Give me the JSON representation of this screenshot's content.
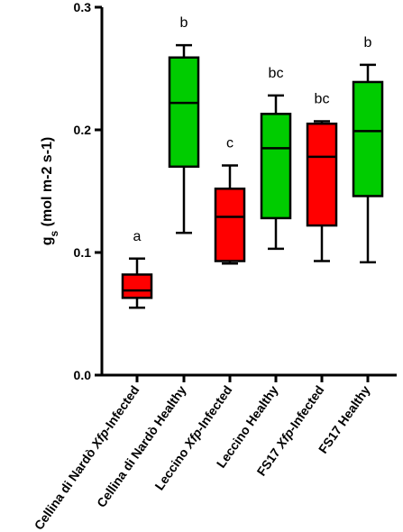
{
  "chart_data": {
    "type": "box",
    "title": "",
    "ylabel": {
      "main": "g",
      "sub": "s",
      "rest": " (mol m-2 s-1)"
    },
    "ylim": [
      0,
      0.3
    ],
    "yticks": [
      "0.0",
      "0.1",
      "0.2",
      "0.3"
    ],
    "ytick_values": [
      0,
      0.1,
      0.2,
      0.3
    ],
    "colors": {
      "infected": "#ff0000",
      "healthy": "#00cc00"
    },
    "boxes": [
      {
        "label_pre": "Cellina di Nardò ",
        "label_italic": "Xfp",
        "label_post": "-Infected",
        "group": "infected",
        "min": 0.055,
        "q1": 0.063,
        "median": 0.069,
        "q3": 0.082,
        "max": 0.095,
        "sig": "a"
      },
      {
        "label_pre": "Cellina di Nardò Healthy",
        "label_italic": "",
        "label_post": "",
        "group": "healthy",
        "min": 0.116,
        "q1": 0.17,
        "median": 0.222,
        "q3": 0.259,
        "max": 0.269,
        "sig": "b"
      },
      {
        "label_pre": "Leccino ",
        "label_italic": "Xfp",
        "label_post": "-Infected",
        "group": "infected",
        "min": 0.091,
        "q1": 0.093,
        "median": 0.129,
        "q3": 0.152,
        "max": 0.171,
        "sig": "c"
      },
      {
        "label_pre": "Leccino Healthy",
        "label_italic": "",
        "label_post": "",
        "group": "healthy",
        "min": 0.103,
        "q1": 0.128,
        "median": 0.185,
        "q3": 0.213,
        "max": 0.228,
        "sig": "bc"
      },
      {
        "label_pre": "FS17 ",
        "label_italic": "Xfp",
        "label_post": "-Infected",
        "group": "infected",
        "min": 0.093,
        "q1": 0.122,
        "median": 0.178,
        "q3": 0.205,
        "max": 0.207,
        "sig": "bc"
      },
      {
        "label_pre": "FS17 Healthy",
        "label_italic": "",
        "label_post": "",
        "group": "healthy",
        "min": 0.092,
        "q1": 0.146,
        "median": 0.199,
        "q3": 0.239,
        "max": 0.253,
        "sig": "b"
      }
    ]
  }
}
